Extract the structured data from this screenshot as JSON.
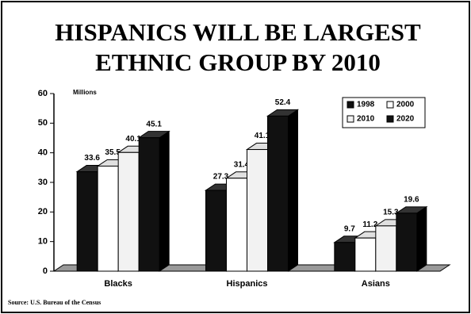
{
  "chart_data": {
    "type": "bar3d",
    "title": [
      "HISPANICS WILL BE LARGEST",
      "ETHNIC GROUP BY 2010"
    ],
    "y_label": "Millions",
    "source": "Source: U.S. Bureau of the Census",
    "categories": [
      "Blacks",
      "Hispanics",
      "Asians"
    ],
    "series": [
      {
        "name": "1998",
        "color": "#111111",
        "values": [
          33.6,
          27.3,
          9.7
        ]
      },
      {
        "name": "2000",
        "color": "#ffffff",
        "values": [
          35.5,
          31.4,
          11.2
        ]
      },
      {
        "name": "2010",
        "color": "#f2f2f2",
        "values": [
          40.1,
          41.1,
          15.3
        ]
      },
      {
        "name": "2020",
        "color": "#111111",
        "values": [
          45.1,
          52.4,
          19.6
        ]
      }
    ],
    "ylim": [
      0,
      60
    ],
    "yticks": [
      0,
      10,
      20,
      30,
      40,
      50,
      60
    ],
    "legend": "top-right"
  }
}
